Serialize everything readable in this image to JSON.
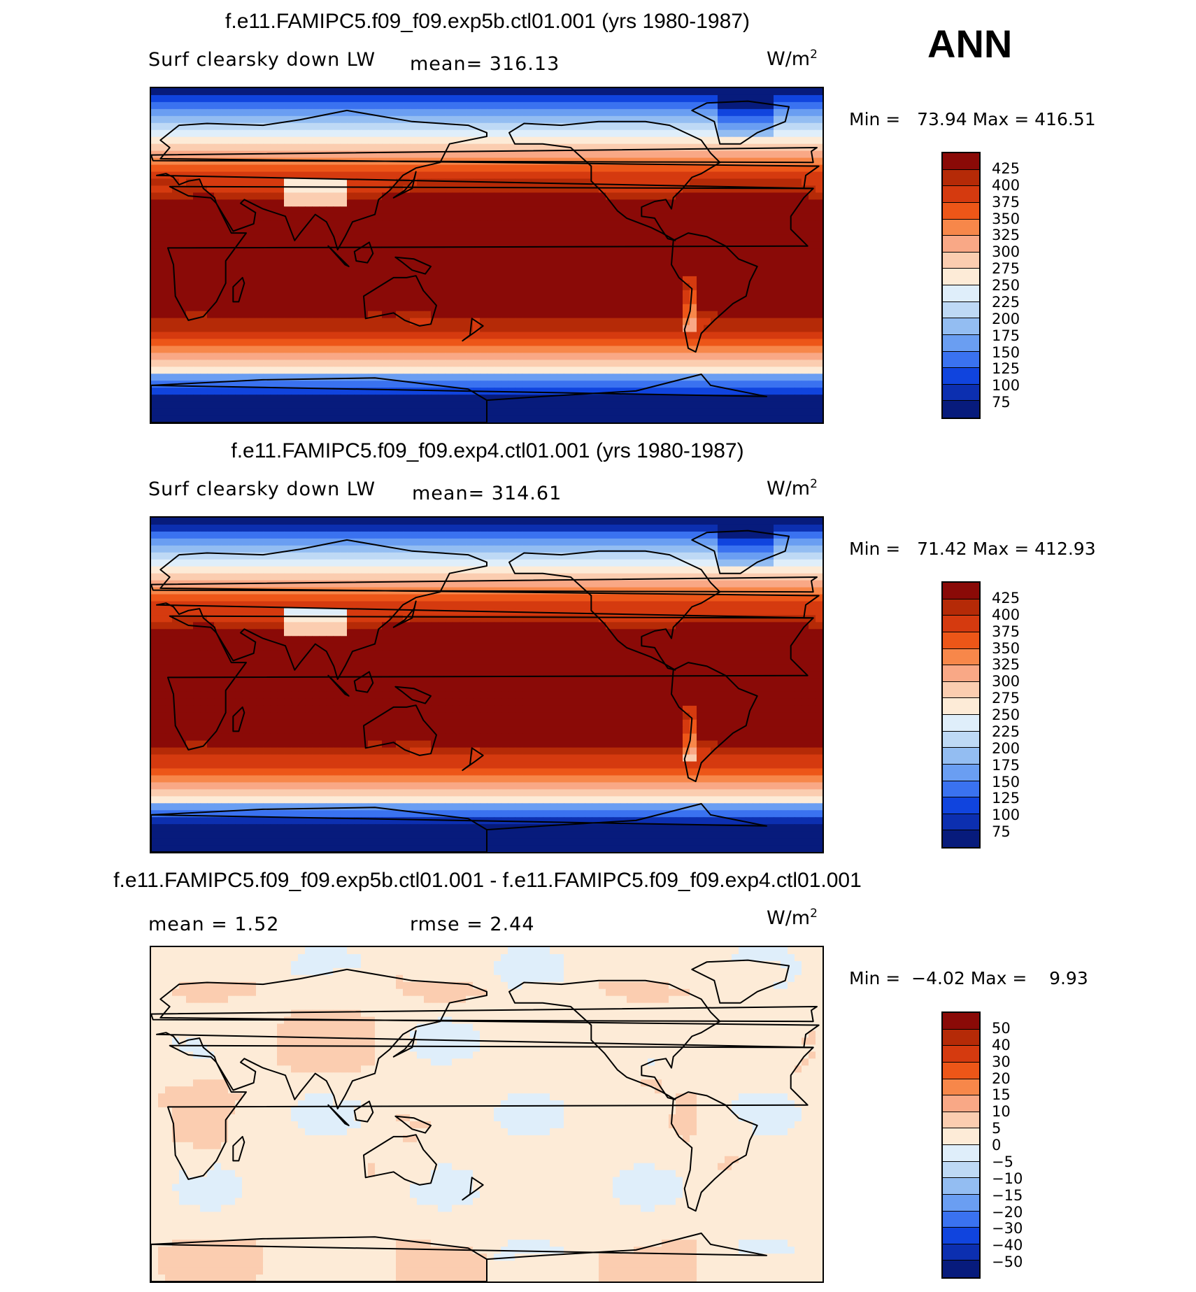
{
  "season": "ANN",
  "panels": [
    {
      "id": "top",
      "title": "f.e11.FAMIPC5.f09_f09.exp5b.ctl01.001 (yrs 1980-1987)",
      "variable": "Surf clearsky down LW",
      "stat1": "mean=  316.13",
      "units": "W/m",
      "units_sup": "2",
      "minmax": "Min =   73.94 Max = 416.51",
      "colorbar_labels": [
        "425",
        "400",
        "375",
        "350",
        "325",
        "300",
        "275",
        "250",
        "225",
        "200",
        "175",
        "150",
        "125",
        "100",
        "75"
      ],
      "field": "abs_a"
    },
    {
      "id": "middle",
      "title": "f.e11.FAMIPC5.f09_f09.exp4.ctl01.001 (yrs 1980-1987)",
      "variable": "Surf clearsky down LW",
      "stat1": "mean=  314.61",
      "units": "W/m",
      "units_sup": "2",
      "minmax": "Min =   71.42 Max = 412.93",
      "colorbar_labels": [
        "425",
        "400",
        "375",
        "350",
        "325",
        "300",
        "275",
        "250",
        "225",
        "200",
        "175",
        "150",
        "125",
        "100",
        "75"
      ],
      "field": "abs_b"
    },
    {
      "id": "bottom",
      "title": "f.e11.FAMIPC5.f09_f09.exp5b.ctl01.001 - f.e11.FAMIPC5.f09_f09.exp4.ctl01.001",
      "variable": "mean =    1.52",
      "stat1": "rmse =    2.44",
      "units": "W/m",
      "units_sup": "2",
      "minmax": "Min =  −4.02 Max =    9.93",
      "colorbar_labels": [
        "50",
        "40",
        "30",
        "20",
        "15",
        "10",
        "5",
        "0",
        "−5",
        "−10",
        "−15",
        "−20",
        "−30",
        "−40",
        "−50"
      ],
      "field": "diff"
    }
  ],
  "colors": {
    "palette": [
      "#8a0a07",
      "#b52a07",
      "#d53a0f",
      "#ed5618",
      "#f7874a",
      "#f9a886",
      "#fbcdb0",
      "#fdebd7",
      "#dfeefa",
      "#bed9f5",
      "#93bdf2",
      "#6a9ef2",
      "#3a72f0",
      "#1044de",
      "#0c2fb0",
      "#071b7c"
    ],
    "land_outline": "#000000",
    "diff_neutral": "#fdebd7",
    "diff_warm": "#fbcdb0",
    "diff_cool": "#dfeefa"
  }
}
